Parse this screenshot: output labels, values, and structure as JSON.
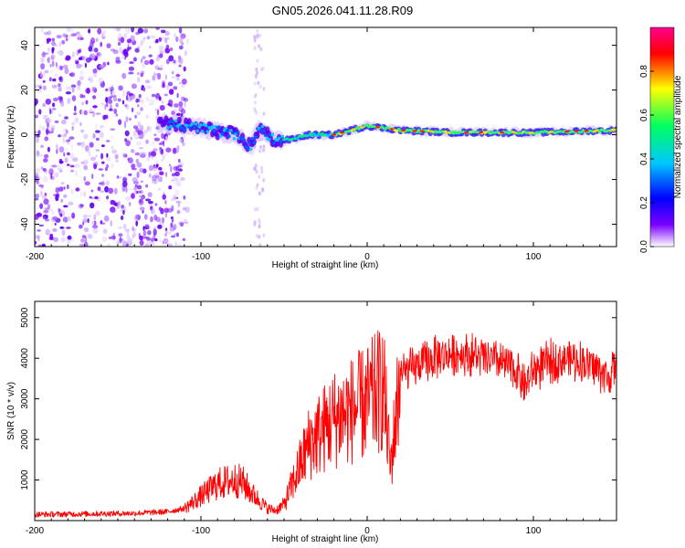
{
  "title": "GN05.2026.041.11.28.R09",
  "chart_data": [
    {
      "type": "heatmap",
      "xlabel": "Height of straight line (km)",
      "ylabel": "Frequency (Hz)",
      "xlim": [
        -200,
        150
      ],
      "ylim": [
        -50,
        48
      ],
      "xticks": [
        -200,
        -100,
        0,
        100
      ],
      "yticks": [
        -40,
        -20,
        0,
        20,
        40
      ],
      "colorbar": {
        "label": "Normalized spectral amplitude",
        "range": [
          0,
          1
        ],
        "ticks": [
          "0.0",
          "0.2",
          "0.4",
          "0.6",
          "0.8"
        ],
        "colors": [
          "#ffffff",
          "#7a00ff",
          "#0000ff",
          "#00c8ff",
          "#00ff60",
          "#ffff00",
          "#ff0000",
          "#ff0090"
        ]
      },
      "ridge": {
        "height_km": [
          -120,
          -100,
          -80,
          -70,
          -65,
          -55,
          -45,
          -35,
          -20,
          -10,
          0,
          20,
          50,
          100,
          150
        ],
        "frequency_hz": [
          5,
          3,
          0,
          -5,
          3,
          -3,
          -2,
          0,
          0,
          2,
          4,
          2,
          1,
          1,
          2
        ]
      }
    },
    {
      "type": "line",
      "xlabel": "Height of straight line (km)",
      "ylabel": "SNR (10 * v/v)",
      "xlim": [
        -200,
        150
      ],
      "ylim": [
        0,
        5400
      ],
      "xticks": [
        -200,
        -100,
        0,
        100
      ],
      "yticks": [
        1000,
        2000,
        3000,
        4000,
        5000
      ],
      "color": "#ff0000",
      "series": [
        {
          "name": "SNR",
          "x": [
            -200,
            -180,
            -160,
            -140,
            -120,
            -110,
            -100,
            -90,
            -80,
            -75,
            -70,
            -60,
            -55,
            -50,
            -45,
            -40,
            -35,
            -30,
            -20,
            -10,
            0,
            10,
            14,
            20,
            30,
            40,
            50,
            60,
            70,
            80,
            90,
            95,
            100,
            110,
            120,
            130,
            140,
            145,
            150
          ],
          "y": [
            150,
            160,
            170,
            180,
            220,
            300,
            600,
            900,
            1000,
            950,
            700,
            300,
            250,
            400,
            900,
            1400,
            1900,
            2100,
            2500,
            2700,
            2900,
            3300,
            1300,
            3600,
            3800,
            4000,
            4100,
            4100,
            4000,
            3900,
            3700,
            3300,
            3700,
            3900,
            4000,
            3900,
            3700,
            3500,
            3900
          ]
        }
      ]
    }
  ]
}
